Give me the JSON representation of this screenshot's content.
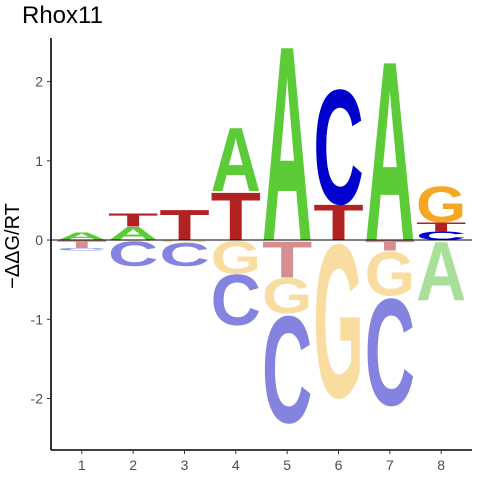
{
  "chart_data": {
    "type": "sequence-logo",
    "title": "Rhox11",
    "ylabel": "−ΔΔG/RT",
    "xlabel": "",
    "ylim": [
      -2.65,
      2.55
    ],
    "xlim": [
      0.4,
      8.6
    ],
    "yticks": [
      -2,
      -1,
      0,
      1,
      2
    ],
    "xticks": [
      1,
      2,
      3,
      4,
      5,
      6,
      7,
      8
    ],
    "grid": false,
    "colors": {
      "A": "#5BCB37",
      "C": "#0000CC",
      "G": "#F5A623",
      "T": "#B22222",
      "A_neg": "#A8E09A",
      "C_neg": "#8484E0",
      "G_neg": "#F9DCA0",
      "T_neg": "#D68F8F"
    },
    "positions": [
      {
        "pos": 1,
        "positive": [
          {
            "base": "A",
            "height": 0.1
          }
        ],
        "negative": [
          {
            "base": "T",
            "height": 0.1
          },
          {
            "base": "C",
            "height": 0.03
          }
        ]
      },
      {
        "pos": 2,
        "positive": [
          {
            "base": "A",
            "height": 0.17
          },
          {
            "base": "T",
            "height": 0.17
          }
        ],
        "negative": [
          {
            "base": "G",
            "height": 0.01
          },
          {
            "base": "C",
            "height": 0.32
          }
        ]
      },
      {
        "pos": 3,
        "positive": [
          {
            "base": "T",
            "height": 0.39
          }
        ],
        "negative": [
          {
            "base": "G",
            "height": 0.03
          },
          {
            "base": "C",
            "height": 0.3
          }
        ]
      },
      {
        "pos": 4,
        "positive": [
          {
            "base": "T",
            "height": 0.62
          },
          {
            "base": "A",
            "height": 0.82
          }
        ],
        "negative": [
          {
            "base": "G",
            "height": 0.42
          },
          {
            "base": "C",
            "height": 0.65
          }
        ]
      },
      {
        "pos": 5,
        "positive": [
          {
            "base": "A",
            "height": 2.52
          }
        ],
        "negative": [
          {
            "base": "T",
            "height": 0.47
          },
          {
            "base": "G",
            "height": 0.45
          },
          {
            "base": "C",
            "height": 1.38
          }
        ]
      },
      {
        "pos": 6,
        "positive": [
          {
            "base": "T",
            "height": 0.46
          },
          {
            "base": "C",
            "height": 1.48
          }
        ],
        "negative": [
          {
            "base": "G",
            "height": 1.98
          }
        ]
      },
      {
        "pos": 7,
        "positive": [
          {
            "base": "A",
            "height": 2.32
          }
        ],
        "negative": [
          {
            "base": "T",
            "height": 0.13
          },
          {
            "base": "G",
            "height": 0.57
          },
          {
            "base": "C",
            "height": 1.38
          }
        ]
      },
      {
        "pos": 8,
        "positive": [
          {
            "base": "C",
            "height": 0.11
          },
          {
            "base": "T",
            "height": 0.12
          },
          {
            "base": "G",
            "height": 0.46
          }
        ],
        "negative": [
          {
            "base": "A",
            "height": 0.76
          }
        ]
      }
    ]
  }
}
